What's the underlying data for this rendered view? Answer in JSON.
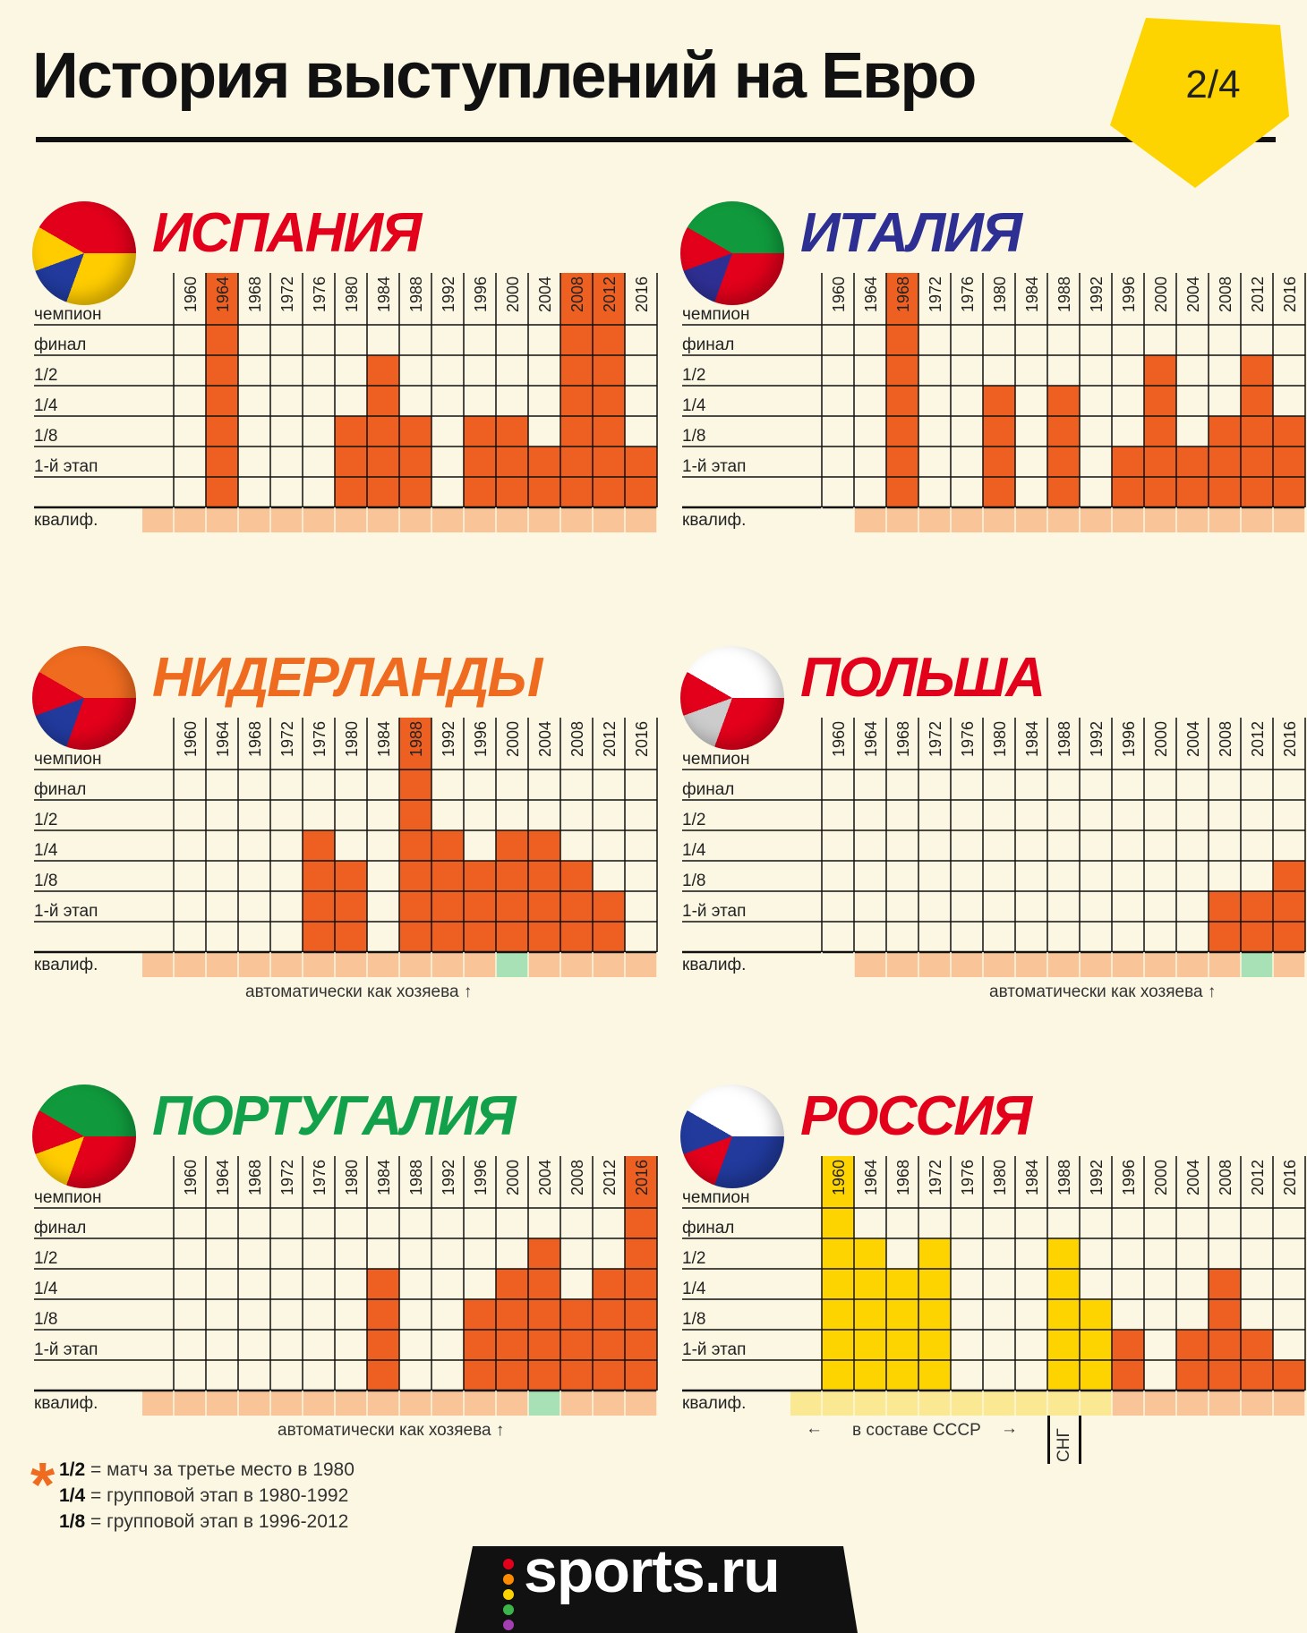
{
  "title": "История выступлений на Евро",
  "page": "2/4",
  "colors": {
    "background": "#fbf7e3",
    "result": "#ee5f22",
    "qualifying": "#f9c497",
    "host": "#a7e1b5",
    "ussr": "#fdd400",
    "ussr_qualifying": "#fbe892",
    "badge": "#fdd400"
  },
  "row_labels": [
    "чемпион",
    "финал",
    "1/2",
    "1/4",
    "1/8",
    "1-й этап",
    "квалиф."
  ],
  "years": [
    "1960",
    "1964",
    "1968",
    "1972",
    "1976",
    "1980",
    "1984",
    "1988",
    "1992",
    "1996",
    "2000",
    "2004",
    "2008",
    "2012",
    "2016"
  ],
  "legend": [
    {
      "key": "1/2",
      "text": "= матч за третье место в 1980"
    },
    {
      "key": "1/4",
      "text": "= групповой этап в 1980-1992"
    },
    {
      "key": "1/8",
      "text": "= групповой этап в 1996-2012"
    }
  ],
  "notes": {
    "host": "автоматически как хозяева ↑",
    "ussr": "в составе СССР",
    "cis": "СНГ"
  },
  "brand": "sports.ru",
  "chart_data": [
    {
      "type": "table",
      "team": "ИСПАНИЯ",
      "name_color": "#e3001b",
      "ball": [
        "#e3001b",
        "#ffcc00",
        "#213a9c"
      ],
      "stage_levels": [
        null,
        6,
        null,
        null,
        null,
        3,
        5,
        3,
        null,
        3,
        3,
        2,
        6,
        6,
        2
      ],
      "year_highlight": [
        1,
        12,
        13
      ],
      "qualifying": [
        "q",
        "q",
        "q",
        "q",
        "q",
        "q",
        "q",
        "q",
        "q",
        "q",
        "q",
        "q",
        "q",
        "q",
        "q"
      ]
    },
    {
      "type": "table",
      "team": "ИТАЛИЯ",
      "name_color": "#2e2f92",
      "ball": [
        "#109a3d",
        "#e3001b",
        "#2e2f92"
      ],
      "stage_levels": [
        null,
        null,
        6,
        null,
        null,
        4,
        null,
        4,
        null,
        2,
        5,
        2,
        3,
        5,
        3
      ],
      "year_highlight": [
        2
      ],
      "qualifying": [
        "",
        "q",
        "q",
        "q",
        "q",
        "q",
        "q",
        "q",
        "q",
        "q",
        "q",
        "q",
        "q",
        "q",
        "q"
      ]
    },
    {
      "type": "table",
      "team": "НИДЕРЛАНДЫ",
      "name_color": "#ee6b1f",
      "ball": [
        "#ee6b1f",
        "#e3001b",
        "#213a9c"
      ],
      "stage_levels": [
        null,
        null,
        null,
        null,
        4,
        3,
        null,
        6,
        4,
        3,
        4,
        4,
        3,
        2,
        null
      ],
      "year_highlight": [
        7
      ],
      "qualifying": [
        "q",
        "q",
        "q",
        "q",
        "q",
        "q",
        "q",
        "q",
        "q",
        "q",
        "h",
        "q",
        "q",
        "q",
        "q"
      ]
    },
    {
      "type": "table",
      "team": "ПОЛЬША",
      "name_color": "#e3001b",
      "ball": [
        "#ffffff",
        "#e3001b",
        "#cccccc"
      ],
      "stage_levels": [
        null,
        null,
        null,
        null,
        null,
        null,
        null,
        null,
        null,
        null,
        null,
        null,
        2,
        2,
        3
      ],
      "year_highlight": [],
      "qualifying": [
        "",
        "q",
        "q",
        "q",
        "q",
        "q",
        "q",
        "q",
        "q",
        "q",
        "q",
        "q",
        "q",
        "h",
        "q"
      ]
    },
    {
      "type": "table",
      "team": "ПОРТУГАЛИЯ",
      "name_color": "#13a04a",
      "ball": [
        "#109a3d",
        "#e3001b",
        "#ffcc00"
      ],
      "stage_levels": [
        null,
        null,
        null,
        null,
        null,
        null,
        4,
        null,
        null,
        3,
        4,
        5,
        3,
        4,
        6
      ],
      "year_highlight": [
        14
      ],
      "qualifying": [
        "q",
        "q",
        "q",
        "q",
        "q",
        "q",
        "q",
        "q",
        "q",
        "q",
        "q",
        "h",
        "q",
        "q",
        "q"
      ]
    },
    {
      "type": "table",
      "team": "РОССИЯ",
      "name_color": "#e3001b",
      "ball": [
        "#ffffff",
        "#213a9c",
        "#e3001b"
      ],
      "stage_levels": [
        6,
        5,
        4,
        5,
        null,
        null,
        null,
        5,
        3,
        2,
        null,
        2,
        4,
        2,
        1
      ],
      "ussr_years": [
        0,
        1,
        2,
        3,
        4,
        5,
        6,
        7,
        8
      ],
      "year_highlight": [
        0
      ],
      "qualifying": [
        "u",
        "u",
        "u",
        "u",
        "u",
        "u",
        "u",
        "u",
        "u",
        "q",
        "q",
        "q",
        "q",
        "q",
        "q"
      ]
    }
  ]
}
